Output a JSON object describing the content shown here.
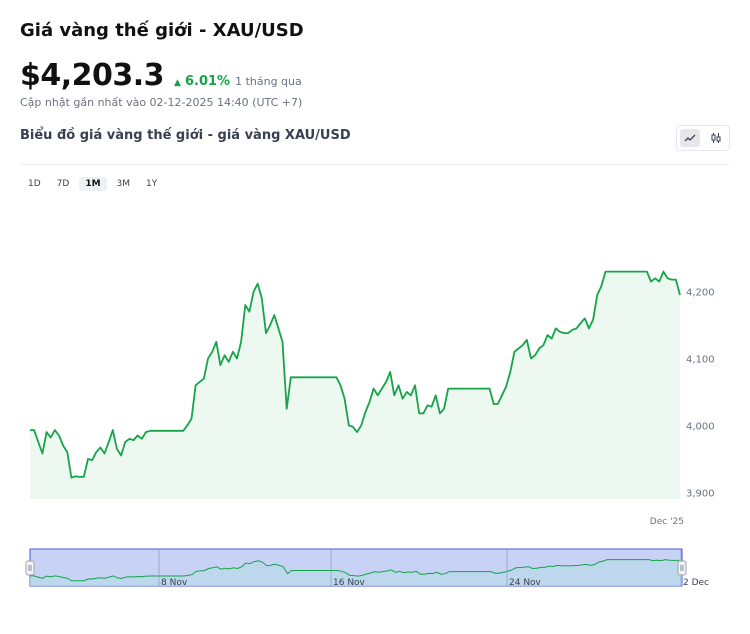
{
  "header": {
    "title": "Giá vàng thế giới - XAU/USD",
    "price": "$4,203.3",
    "change_pct": "6.01%",
    "change_period": "1 tháng qua",
    "updated": "Cập nhật gần nhất vào 02-12-2025 14:40 (UTC +7)"
  },
  "chart_section": {
    "subtitle": "Biểu đồ giá vàng thế giới - giá vàng XAU/USD"
  },
  "ranges": [
    {
      "label": "1D",
      "active": false
    },
    {
      "label": "7D",
      "active": false
    },
    {
      "label": "1M",
      "active": true
    },
    {
      "label": "3M",
      "active": false
    },
    {
      "label": "1Y",
      "active": false
    }
  ],
  "colors": {
    "line": "#16a34a",
    "area": "#ecf8f0",
    "up": "#16a34a",
    "navigator_fill": "#c7d2f5",
    "navigator_line": "#4b5bd3"
  },
  "chart_data": {
    "type": "area",
    "title": "",
    "xlabel": "",
    "ylabel": "",
    "ylim": [
      3890,
      4340
    ],
    "yticks": [
      3900,
      4000,
      4100,
      4200
    ],
    "ytick_labels": [
      "3,900",
      "4,000",
      "4,100",
      "4,200"
    ],
    "x_label_end": "Dec '25",
    "navigator_labels": [
      "8 Nov",
      "16 Nov",
      "24 Nov",
      "2 Dec"
    ],
    "grid": false,
    "series": [
      {
        "values": [
          3993,
          3993,
          3975,
          3958,
          3990,
          3982,
          3993,
          3985,
          3970,
          3960,
          3922,
          3924,
          3923,
          3923,
          3950,
          3948,
          3960,
          3967,
          3958,
          3975,
          3993,
          3965,
          3955,
          3975,
          3980,
          3978,
          3985,
          3980,
          3990,
          3992,
          3992,
          3992,
          3992,
          3992,
          3992,
          3992,
          3992,
          3992,
          4000,
          4010,
          4060,
          4065,
          4070,
          4100,
          4110,
          4125,
          4090,
          4105,
          4095,
          4110,
          4100,
          4125,
          4180,
          4170,
          4200,
          4212,
          4190,
          4138,
          4150,
          4165,
          4145,
          4125,
          4025,
          4072,
          4072,
          4072,
          4072,
          4072,
          4072,
          4072,
          4072,
          4072,
          4072,
          4072,
          4072,
          4060,
          4040,
          4000,
          3998,
          3990,
          4000,
          4020,
          4035,
          4055,
          4045,
          4055,
          4065,
          4080,
          4045,
          4060,
          4040,
          4050,
          4045,
          4060,
          4018,
          4018,
          4030,
          4028,
          4045,
          4018,
          4025,
          4055,
          4055,
          4055,
          4055,
          4055,
          4055,
          4055,
          4055,
          4055,
          4055,
          4055,
          4032,
          4032,
          4045,
          4058,
          4080,
          4110,
          4115,
          4120,
          4128,
          4100,
          4105,
          4115,
          4120,
          4135,
          4130,
          4145,
          4140,
          4138,
          4138,
          4143,
          4145,
          4153,
          4160,
          4145,
          4158,
          4195,
          4208,
          4230,
          4230,
          4230,
          4230,
          4230,
          4230,
          4230,
          4230,
          4230,
          4230,
          4230,
          4215,
          4220,
          4215,
          4230,
          4220,
          4218,
          4218,
          4195
        ]
      }
    ]
  }
}
